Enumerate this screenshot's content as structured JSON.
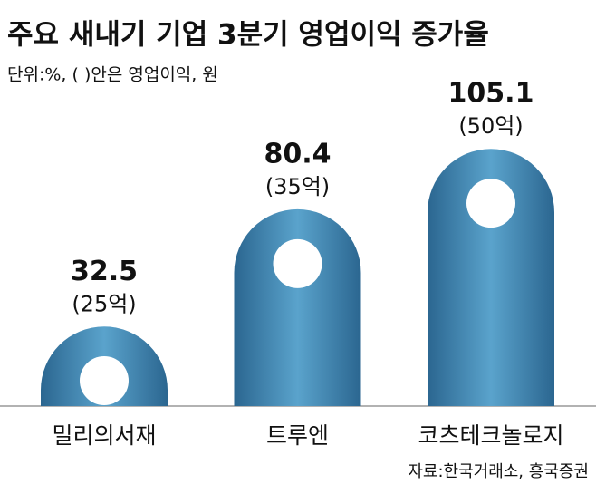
{
  "chart_data": {
    "type": "bar",
    "title": "주요 새내기 기업 3분기 영업이익 증가율",
    "subtitle": "단위:%, (  )안은 영업이익, 원",
    "categories": [
      "밀리의서재",
      "트루엔",
      "코츠테크놀로지"
    ],
    "values": [
      32.5,
      80.4,
      105.1
    ],
    "annotations": [
      "(25억)",
      "(35억)",
      "(50억)"
    ],
    "source": "자료:한국거래소, 흥국증권",
    "color": "#3f85b5"
  }
}
